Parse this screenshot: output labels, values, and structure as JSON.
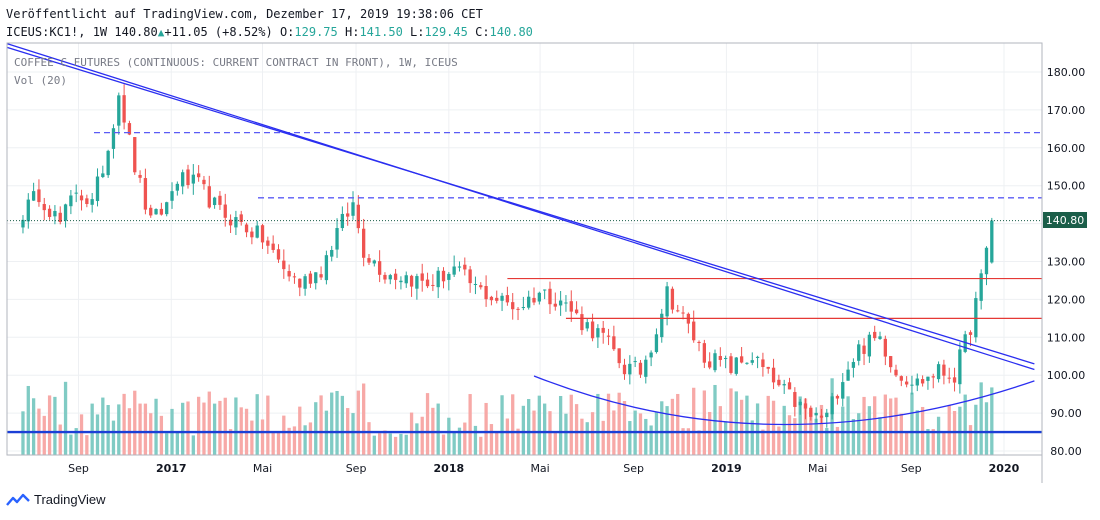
{
  "header": {
    "published": "Veröffentlicht auf TradingView.com, Dezember 17, 2019 19:38:06 CET",
    "symbol": "ICEUS:KC1!, 1W 140.80",
    "change_arrow": "▲",
    "change": "+11.05 (+8.52%)",
    "o_label": "O:",
    "o_value": "129.75",
    "h_label": "H:",
    "h_value": "141.50",
    "l_label": "L:",
    "l_value": "129.45",
    "c_label": "C:",
    "c_value": "140.80"
  },
  "chart_title": "COFFEE C FUTURES (CONTINUOUS: CURRENT CONTRACT IN FRONT), 1W, ICEUS",
  "volume_label": "Vol (20)",
  "footer": {
    "brand": "TradingView",
    "logo_icon": "tradingview-logo-icon"
  },
  "colors": {
    "up": "#26a69a",
    "down": "#ef5350",
    "trendline": "#2a2ef0",
    "resistance": "#e53935",
    "dashed": "#5b5bf5",
    "hline": "#1b3fd6"
  },
  "chart_data": {
    "type": "candlestick",
    "title": "COFFEE C FUTURES (CONTINUOUS: CURRENT CONTRACT IN FRONT), 1W, ICEUS",
    "y_ticks": [
      "180.00",
      "170.00",
      "160.00",
      "150.00",
      "140.00",
      "130.00",
      "120.00",
      "110.00",
      "100.00",
      "90.00",
      "80.00"
    ],
    "x_ticks": [
      "Sep",
      "2017",
      "Mai",
      "Sep",
      "2018",
      "Mai",
      "Sep",
      "2019",
      "Mai",
      "Sep",
      "2020"
    ],
    "ylim": [
      80,
      185
    ],
    "last_price": "140.80",
    "anchors": [
      [
        "2016-06-20",
        143
      ],
      [
        "2016-07-11",
        148
      ],
      [
        "2016-08-08",
        140
      ],
      [
        "2016-08-29",
        149
      ],
      [
        "2016-09-19",
        145
      ],
      [
        "2016-10-10",
        160
      ],
      [
        "2016-10-24",
        175
      ],
      [
        "2016-11-14",
        155
      ],
      [
        "2016-12-05",
        140
      ],
      [
        "2016-12-26",
        145
      ],
      [
        "2017-01-09",
        152
      ],
      [
        "2017-02-06",
        150
      ],
      [
        "2017-03-06",
        143
      ],
      [
        "2017-04-03",
        140
      ],
      [
        "2017-05-01",
        136
      ],
      [
        "2017-05-29",
        128
      ],
      [
        "2017-06-19",
        124
      ],
      [
        "2017-07-17",
        128
      ],
      [
        "2017-08-07",
        138
      ],
      [
        "2017-08-28",
        145
      ],
      [
        "2017-09-11",
        133
      ],
      [
        "2017-10-09",
        127
      ],
      [
        "2017-11-06",
        126
      ],
      [
        "2017-12-04",
        124
      ],
      [
        "2018-01-08",
        128
      ],
      [
        "2018-02-05",
        123
      ],
      [
        "2018-03-05",
        120
      ],
      [
        "2018-04-02",
        118
      ],
      [
        "2018-04-30",
        122
      ],
      [
        "2018-05-28",
        120
      ],
      [
        "2018-06-25",
        114
      ],
      [
        "2018-07-23",
        110
      ],
      [
        "2018-08-20",
        102
      ],
      [
        "2018-09-10",
        101
      ],
      [
        "2018-09-24",
        108
      ],
      [
        "2018-10-15",
        122
      ],
      [
        "2018-11-05",
        115
      ],
      [
        "2018-12-03",
        105
      ],
      [
        "2019-01-07",
        102
      ],
      [
        "2019-02-04",
        105
      ],
      [
        "2019-03-04",
        98
      ],
      [
        "2019-04-01",
        93
      ],
      [
        "2019-04-22",
        89
      ],
      [
        "2019-05-13",
        89
      ],
      [
        "2019-06-03",
        100
      ],
      [
        "2019-06-24",
        107
      ],
      [
        "2019-07-22",
        110
      ],
      [
        "2019-08-12",
        101
      ],
      [
        "2019-09-09",
        98
      ],
      [
        "2019-10-07",
        101
      ],
      [
        "2019-10-28",
        100
      ],
      [
        "2019-11-18",
        113
      ],
      [
        "2019-12-02",
        125
      ],
      [
        "2019-12-16",
        140.8
      ]
    ],
    "volume_range": [
      0,
      100
    ],
    "horizontal_lines": [
      {
        "value": 164,
        "style": "dashed"
      },
      {
        "value": 146.8,
        "style": "dashed"
      },
      {
        "value": 140.8,
        "style": "dotted"
      },
      {
        "value": 125.5,
        "style": "solid-red",
        "from": "2018-03-19"
      },
      {
        "value": 115,
        "style": "solid-red",
        "from": "2018-06-04"
      },
      {
        "value": 85,
        "style": "solid-blue"
      }
    ],
    "trendlines": [
      {
        "from": [
          "2016-05-30",
          187.5
        ],
        "to": [
          "2020-02-10",
          101.5
        ]
      },
      {
        "from": [
          "2016-05-30",
          186.5
        ],
        "to": [
          "2020-02-10",
          103
        ]
      }
    ],
    "arc": {
      "from": [
        "2018-04-23",
        99.8
      ],
      "bottom": [
        "2019-03-11",
        87
      ],
      "to": [
        "2020-02-10",
        98.5
      ]
    }
  }
}
